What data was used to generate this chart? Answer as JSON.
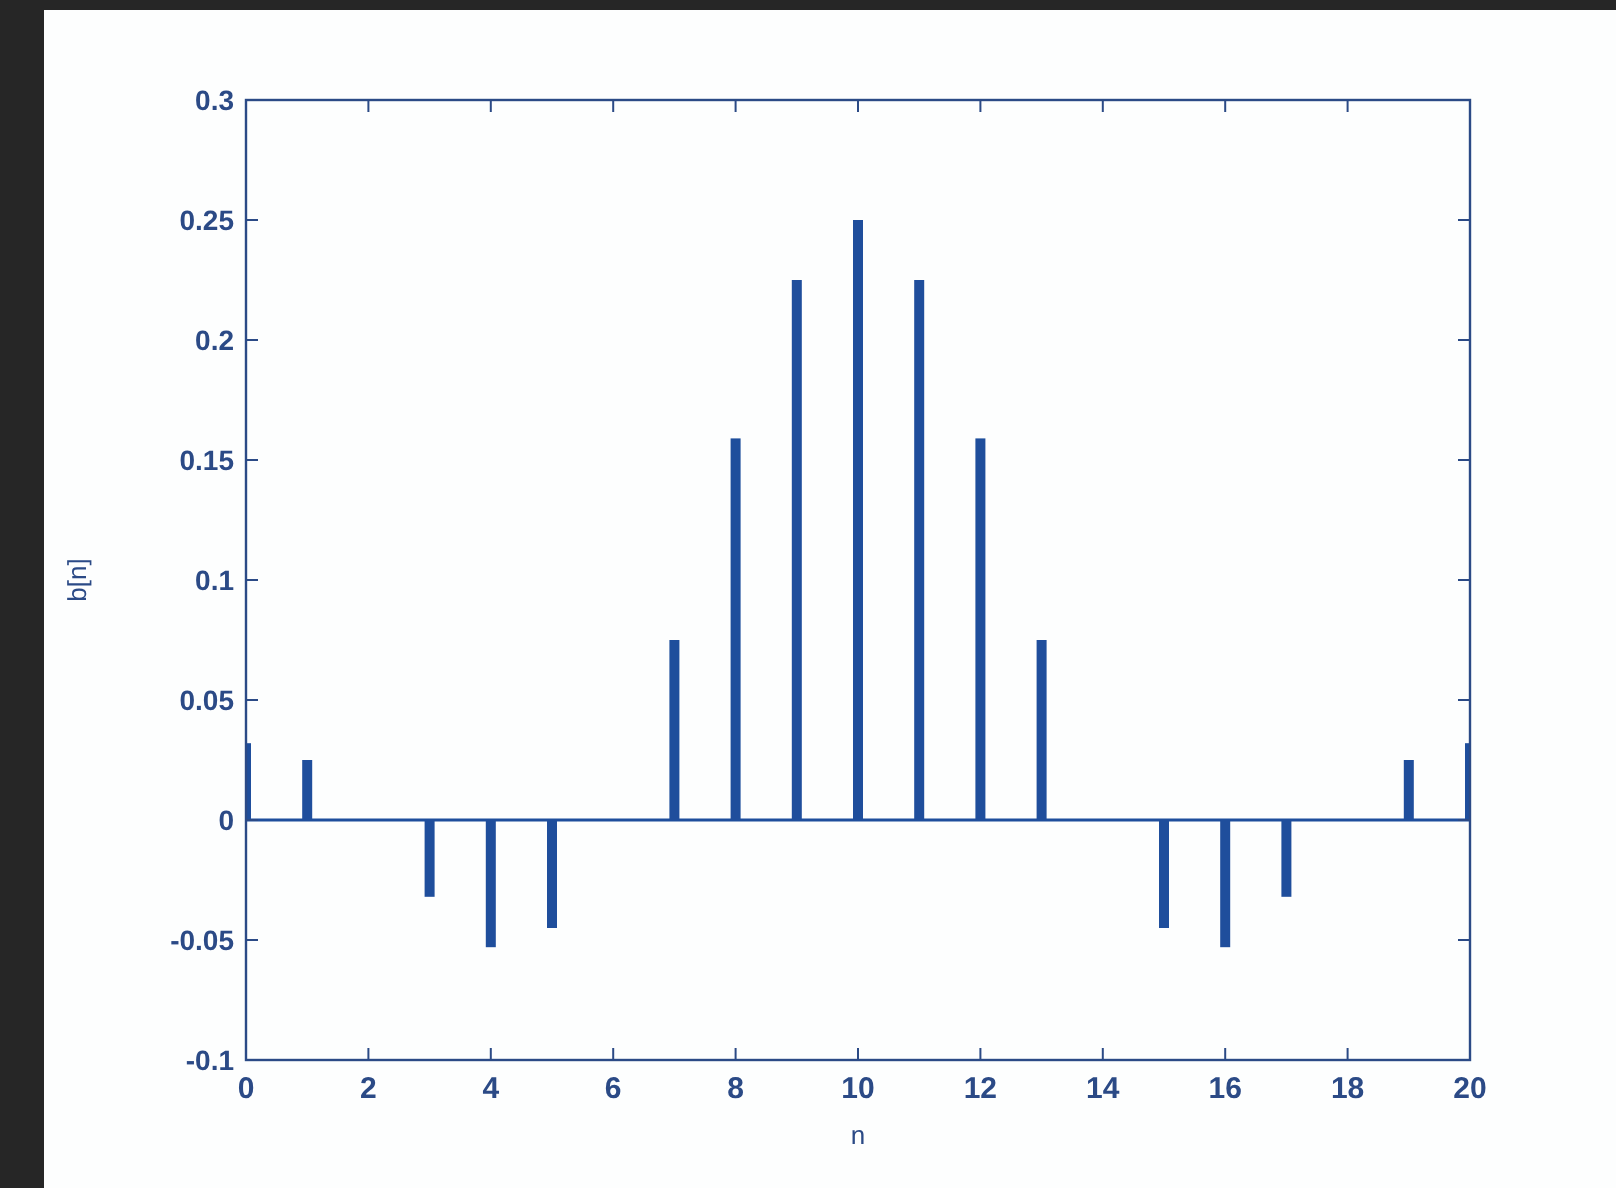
{
  "chart_data": {
    "type": "bar",
    "xlabel": "n",
    "ylabel": "b[n]",
    "x": [
      0,
      1,
      2,
      3,
      4,
      5,
      6,
      7,
      8,
      9,
      10,
      11,
      12,
      13,
      14,
      15,
      16,
      17,
      18,
      19,
      20
    ],
    "values": [
      0.032,
      0.025,
      0,
      -0.032,
      -0.053,
      -0.045,
      0,
      0.075,
      0.159,
      0.225,
      0.25,
      0.225,
      0.159,
      0.075,
      0,
      -0.045,
      -0.053,
      -0.032,
      0,
      0.025,
      0.032
    ],
    "color": "#1f4e9c",
    "xlim": [
      0,
      20
    ],
    "xticks": [
      0,
      2,
      4,
      6,
      8,
      10,
      12,
      14,
      16,
      18,
      20
    ],
    "ylim": [
      -0.1,
      0.3
    ],
    "yticks": [
      -0.1,
      -0.05,
      0,
      0.05,
      0.1,
      0.15,
      0.2,
      0.25,
      0.3
    ],
    "ref_lines": [
      {
        "axis": "y",
        "value": 0,
        "color": "#1f4e9c"
      }
    ],
    "grid": false
  }
}
